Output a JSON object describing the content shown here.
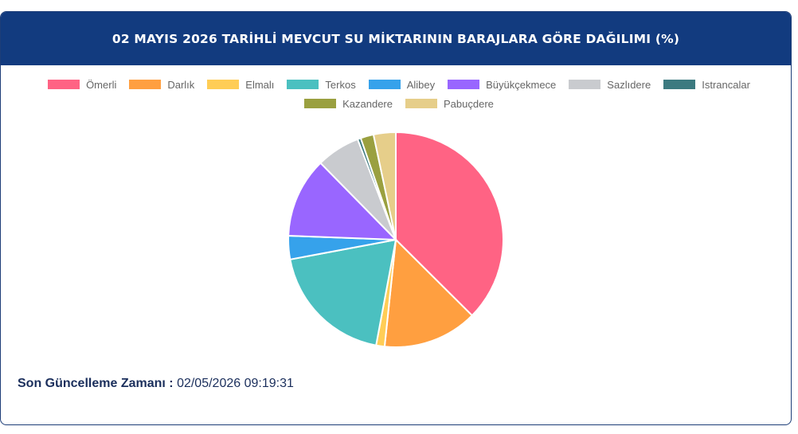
{
  "header": {
    "title": "02 MAYIS 2026 TARİHLİ MEVCUT SU MİKTARININ BARAJLARA GÖRE DAĞILIMI (%)"
  },
  "chart_data": {
    "type": "pie",
    "title": "02 MAYIS 2026 TARİHLİ MEVCUT SU MİKTARININ BARAJLARA GÖRE DAĞILIMI (%)",
    "legend_position": "top",
    "categories": [
      "Ömerli",
      "Darlık",
      "Elmalı",
      "Terkos",
      "Alibey",
      "Büyükçekmece",
      "Sazlıdere",
      "Istrancalar",
      "Kazandere",
      "Pabuçdere"
    ],
    "values": [
      38.2,
      14.5,
      1.3,
      19.5,
      3.6,
      12.3,
      6.7,
      0.5,
      2.0,
      3.4
    ],
    "colors": [
      "#ff6384",
      "#ff9f40",
      "#ffcd56",
      "#4bc0c0",
      "#36a2eb",
      "#9966ff",
      "#c9cbcf",
      "#3c7a80",
      "#9aa040",
      "#e6ce8a"
    ]
  },
  "footer": {
    "label": "Son Güncelleme Zamanı :",
    "value": "02/05/2026 09:19:31"
  }
}
